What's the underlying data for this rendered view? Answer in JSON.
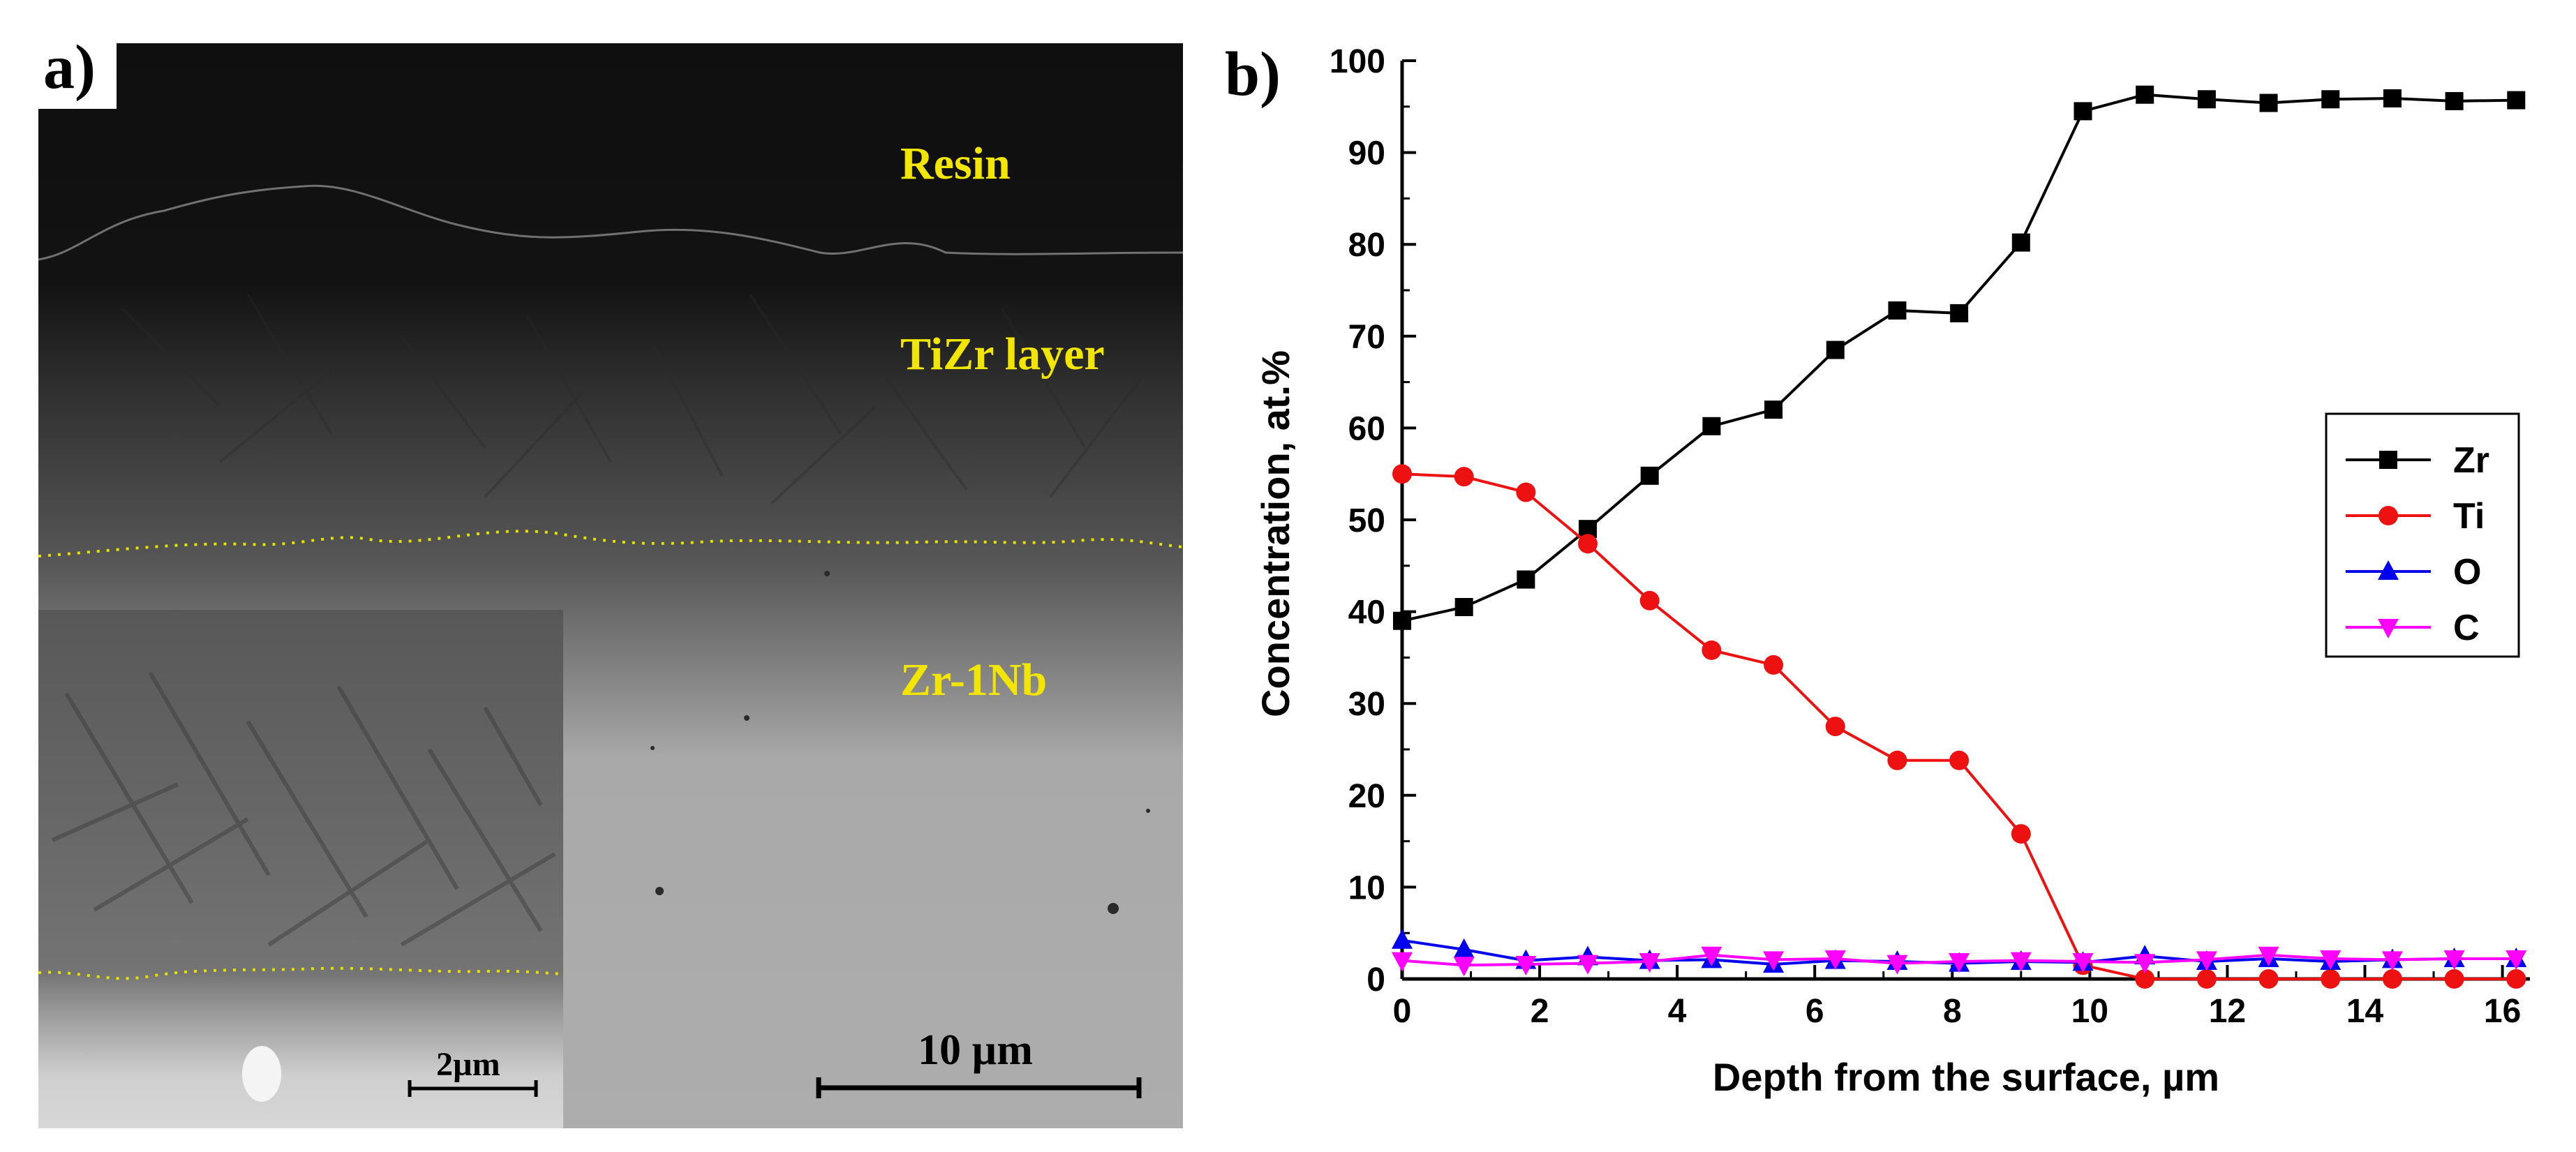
{
  "panel_a": {
    "letter": "a)",
    "labels": {
      "resin": "Resin",
      "tizr": "TiZr layer",
      "substrate": "Zr-1Nb"
    },
    "scale_main": "10 µm",
    "scale_inset": "2µm",
    "label_color": "#f2e600"
  },
  "panel_b": {
    "letter": "b)"
  },
  "chart_data": {
    "type": "line",
    "xlabel": "Depth from the surface, µm",
    "ylabel": "Concentration, at.%",
    "xlim": [
      0,
      16.4
    ],
    "ylim": [
      0,
      100
    ],
    "xticks": [
      0,
      2,
      4,
      6,
      8,
      10,
      12,
      14,
      16
    ],
    "yticks": [
      0,
      10,
      20,
      30,
      40,
      50,
      60,
      70,
      80,
      90,
      100
    ],
    "legend_position": "right",
    "x": [
      0,
      0.9,
      1.8,
      2.7,
      3.6,
      4.5,
      5.4,
      6.3,
      7.2,
      8.1,
      9.0,
      9.9,
      10.8,
      11.7,
      12.6,
      13.5,
      14.4,
      15.3,
      16.2
    ],
    "series": [
      {
        "name": "Zr",
        "color": "#000000",
        "marker": "square",
        "values": [
          39,
          40.5,
          43.5,
          49,
          54.8,
          60.2,
          62,
          68.5,
          72.8,
          72.5,
          80.2,
          94.5,
          96.3,
          95.8,
          95.4,
          95.8,
          95.9,
          95.6,
          95.7
        ]
      },
      {
        "name": "Ti",
        "color": "#ee1111",
        "marker": "circle",
        "values": [
          55,
          54.7,
          53,
          47.4,
          41.2,
          35.8,
          34.2,
          27.5,
          23.8,
          23.8,
          15.8,
          1.5,
          0,
          0,
          0,
          0,
          0,
          0,
          0
        ]
      },
      {
        "name": "O",
        "color": "#0000ee",
        "marker": "triangle-up",
        "values": [
          4.2,
          3.2,
          2.0,
          2.4,
          2.0,
          2.1,
          1.6,
          2.0,
          1.9,
          1.7,
          1.9,
          1.8,
          2.5,
          1.9,
          2.2,
          1.9,
          2.1,
          2.2,
          2.2
        ]
      },
      {
        "name": "C",
        "color": "#ff00ff",
        "marker": "triangle-down",
        "values": [
          2.0,
          1.5,
          1.6,
          1.7,
          1.9,
          2.6,
          2.1,
          2.2,
          1.7,
          1.9,
          2.0,
          1.9,
          1.8,
          2.1,
          2.6,
          2.2,
          2.1,
          2.2,
          2.2
        ]
      }
    ]
  }
}
